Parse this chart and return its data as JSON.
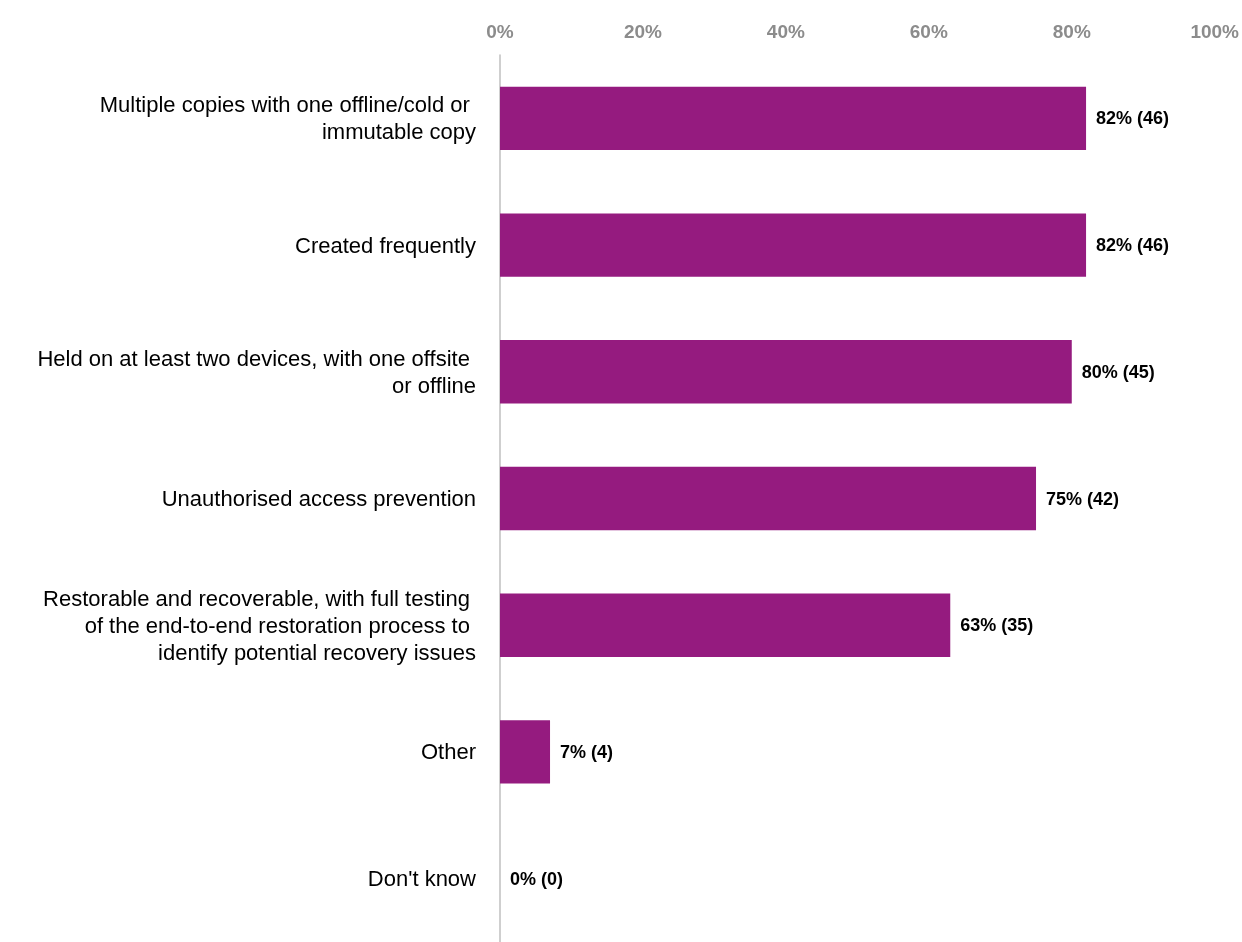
{
  "chart_data": {
    "type": "bar",
    "orientation": "horizontal",
    "categories": [
      "Multiple copies with one offline/cold or immutable copy",
      "Created frequently",
      "Held on at least two devices, with one offsite or offline",
      "Unauthorised access prevention",
      "Restorable and recoverable, with full testing of the end-to-end restoration process to identify potential recovery issues",
      "Other",
      "Don't know"
    ],
    "values": [
      82,
      82,
      80,
      75,
      63,
      7,
      0
    ],
    "value_labels": [
      "82% (46)",
      "82% (46)",
      "80% (45)",
      "75% (42)",
      "63% (35)",
      "7% (4)",
      "0% (0)"
    ],
    "color": "#951b7f",
    "xlim": [
      0,
      100
    ],
    "xticks": [
      {
        "value": 0,
        "label": "0%"
      },
      {
        "value": 20,
        "label": "20%"
      },
      {
        "value": 40,
        "label": "40%"
      },
      {
        "value": 60,
        "label": "60%"
      },
      {
        "value": 80,
        "label": "80%"
      },
      {
        "value": 100,
        "label": "100%"
      }
    ],
    "grid": false
  }
}
